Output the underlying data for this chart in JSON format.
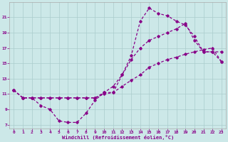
{
  "xlabel": "Windchill (Refroidissement éolien,°C)",
  "bg_color": "#cce8e8",
  "line_color": "#880088",
  "grid_color": "#aacccc",
  "spine_color": "#aaaaaa",
  "xlim": [
    -0.5,
    23.5
  ],
  "ylim": [
    6.5,
    23
  ],
  "xticks": [
    0,
    1,
    2,
    3,
    4,
    5,
    6,
    7,
    8,
    9,
    10,
    11,
    12,
    13,
    14,
    15,
    16,
    17,
    18,
    19,
    20,
    21,
    22,
    23
  ],
  "yticks": [
    7,
    9,
    11,
    13,
    15,
    17,
    19,
    21
  ],
  "line1_x": [
    0,
    1,
    2,
    3,
    4,
    5,
    6,
    7,
    8,
    9,
    10,
    11,
    12,
    13,
    14,
    15,
    16,
    17,
    18,
    19,
    20,
    21,
    22,
    23
  ],
  "line1_y": [
    11.5,
    10.5,
    10.5,
    9.5,
    9.0,
    7.5,
    7.3,
    7.3,
    8.5,
    10.2,
    11.2,
    11.2,
    13.5,
    16.0,
    20.5,
    22.2,
    21.5,
    21.2,
    20.5,
    20.0,
    18.5,
    16.5,
    16.5,
    16.5
  ],
  "line2_x": [
    0,
    1,
    2,
    3,
    4,
    5,
    6,
    7,
    8,
    9,
    10,
    11,
    12,
    13,
    14,
    15,
    16,
    17,
    18,
    19,
    20,
    21,
    22,
    23
  ],
  "line2_y": [
    11.5,
    10.5,
    10.5,
    10.5,
    10.5,
    10.5,
    10.5,
    10.5,
    10.5,
    10.5,
    11.2,
    12.0,
    13.5,
    15.5,
    17.0,
    18.0,
    18.5,
    19.0,
    19.5,
    20.2,
    18.0,
    16.5,
    16.5,
    15.2
  ],
  "line3_x": [
    0,
    1,
    2,
    3,
    4,
    5,
    6,
    7,
    8,
    9,
    10,
    11,
    12,
    13,
    14,
    15,
    16,
    17,
    18,
    19,
    20,
    21,
    22,
    23
  ],
  "line3_y": [
    11.5,
    10.5,
    10.5,
    10.5,
    10.5,
    10.5,
    10.5,
    10.5,
    10.5,
    10.5,
    11.0,
    11.2,
    12.0,
    12.8,
    13.5,
    14.5,
    15.0,
    15.5,
    15.8,
    16.2,
    16.5,
    16.8,
    17.0,
    15.2
  ]
}
